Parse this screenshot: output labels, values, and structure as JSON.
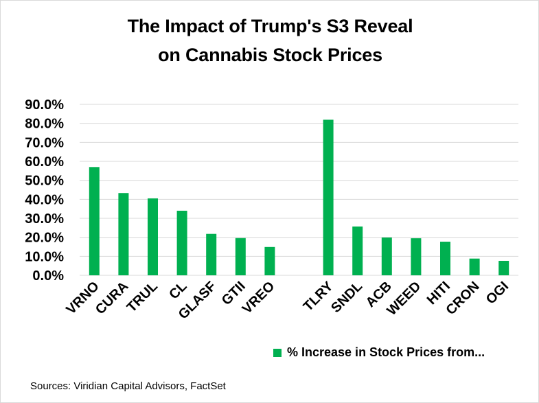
{
  "chart_data": {
    "type": "bar",
    "title_lines": [
      "The Impact of Trump's S3 Reveal",
      "on Cannabis Stock Prices"
    ],
    "categories": [
      "VRNO",
      "CURA",
      "TRUL",
      "CL",
      "GLASF",
      "GTII",
      "VREO",
      "",
      "TLRY",
      "SNDL",
      "ACB",
      "WEED",
      "HITI",
      "CRON",
      "OGI"
    ],
    "series": [
      {
        "name": "% Increase in Stock Prices from...",
        "color": "#00b050",
        "values": [
          57.0,
          43.3,
          40.5,
          34.0,
          21.8,
          19.6,
          14.9,
          null,
          81.9,
          25.7,
          19.9,
          19.5,
          17.7,
          8.8,
          7.6
        ]
      }
    ],
    "yticks": [
      "0.0%",
      "10.0%",
      "20.0%",
      "30.0%",
      "40.0%",
      "50.0%",
      "60.0%",
      "70.0%",
      "80.0%",
      "90.0%"
    ],
    "ylim": [
      0,
      90
    ],
    "grid": true,
    "legend_position": "bottom-right",
    "source": "Sources: Viridian Capital Advisors, FactSet"
  }
}
